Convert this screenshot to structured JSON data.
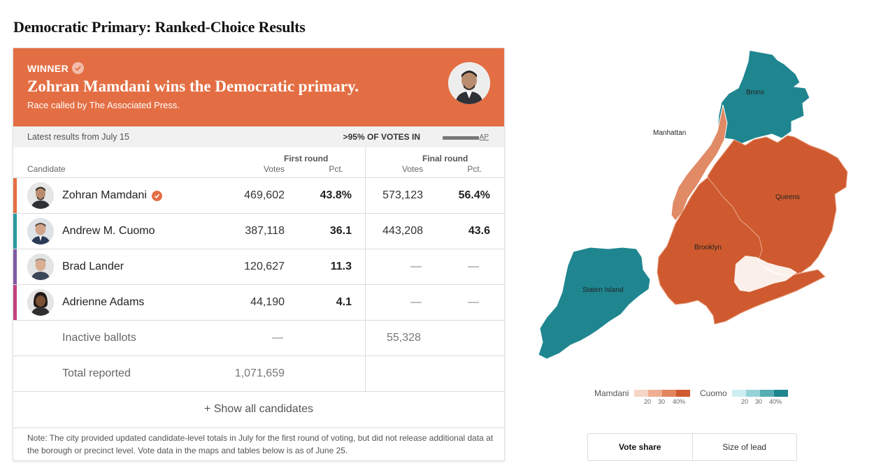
{
  "page": {
    "title": "Democratic Primary: Ranked-Choice Results"
  },
  "banner": {
    "tag": "WINNER",
    "headline": "Zohran Mamdani wins the Democratic primary.",
    "subtitle": "Race called by The Associated Press.",
    "color": "#e46e43"
  },
  "status": {
    "latest": "Latest results from July 15",
    "votes_in": ">95% OF VOTES IN",
    "source": "AP"
  },
  "table": {
    "col_candidate": "Candidate",
    "round1_title": "First round",
    "round2_title": "Final round",
    "col_votes": "Votes",
    "col_pct": "Pct.",
    "candidates": [
      {
        "name": "Zohran Mamdani",
        "winner": true,
        "r1_votes": "469,602",
        "r1_pct": "43.8%",
        "r2_votes": "573,123",
        "r2_pct": "56.4%",
        "color": "#e46e43"
      },
      {
        "name": "Andrew M. Cuomo",
        "winner": false,
        "r1_votes": "387,118",
        "r1_pct": "36.1",
        "r2_votes": "443,208",
        "r2_pct": "43.6",
        "color": "#2c98a0"
      },
      {
        "name": "Brad Lander",
        "winner": false,
        "r1_votes": "120,627",
        "r1_pct": "11.3",
        "r2_votes": "—",
        "r2_pct": "—",
        "color": "#7f5aa5"
      },
      {
        "name": "Adrienne Adams",
        "winner": false,
        "r1_votes": "44,190",
        "r1_pct": "4.1",
        "r2_votes": "—",
        "r2_pct": "—",
        "color": "#c1427c"
      }
    ],
    "inactive": {
      "label": "Inactive ballots",
      "r1_votes": "—",
      "r2_votes": "55,328"
    },
    "total": {
      "label": "Total reported",
      "r1_votes": "1,071,659"
    },
    "show_all": "+ Show all candidates"
  },
  "note": "Note: The city provided updated candidate-level totals in July for the first round of voting, but did not release additional data at the borough or precinct level. Vote data in the maps and tables below is as of June 25.",
  "map": {
    "boroughs": {
      "bronx": "Bronx",
      "manhattan": "Manhattan",
      "queens": "Queens",
      "brooklyn": "Brooklyn",
      "staten_island": "Staten Island"
    },
    "colors": {
      "mamdani_dark": "#cf5a2f",
      "mamdani_light": "#e08a66",
      "cuomo_dark": "#1f8690"
    }
  },
  "legend": {
    "mamdani_label": "Mamdani",
    "cuomo_label": "Cuomo",
    "ticks": [
      "20",
      "30",
      "40%"
    ],
    "mamdani_colors": [
      "#f7d5c6",
      "#eeae92",
      "#e2845d",
      "#cf5a2f"
    ],
    "cuomo_colors": [
      "#cdeef0",
      "#96d3d8",
      "#56adb4",
      "#1f8690"
    ]
  },
  "toggle": {
    "vote_share": "Vote share",
    "size_of_lead": "Size of lead",
    "active": "vote_share"
  }
}
